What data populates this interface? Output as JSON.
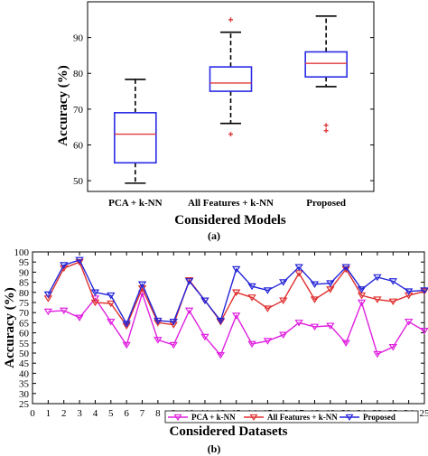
{
  "chart_data": [
    {
      "type": "box",
      "caption": "(a)",
      "title": "",
      "xlabel": "Considered Models",
      "ylabel": "Accuracy (%)",
      "ylim": [
        47,
        100
      ],
      "yticks": [
        50,
        60,
        70,
        80,
        90
      ],
      "grid": false,
      "categories": [
        "PCA + k-NN",
        "All Features + k-NN",
        "Proposed"
      ],
      "boxes": [
        {
          "name": "PCA + k-NN",
          "whisker_low": 49.3,
          "q1": 55,
          "median": 63,
          "q3": 69,
          "whisker_high": 78.3,
          "outliers": []
        },
        {
          "name": "All Features + k-NN",
          "whisker_low": 66,
          "q1": 75,
          "median": 77.3,
          "q3": 81.8,
          "whisker_high": 91.5,
          "outliers": [
            63,
            95
          ]
        },
        {
          "name": "Proposed",
          "whisker_low": 76.3,
          "q1": 79,
          "median": 82.8,
          "q3": 86,
          "whisker_high": 96,
          "outliers": [
            64,
            65.5
          ]
        }
      ],
      "colors": {
        "box": "#2a2ae6",
        "median": "#e03a3a",
        "outlier": "#e03a3a",
        "whisker": "#000000"
      }
    },
    {
      "type": "line",
      "caption": "(b)",
      "title": "",
      "xlabel": "Considered Datasets",
      "ylabel": "Accuracy (%)",
      "xlim": [
        0,
        25
      ],
      "ylim": [
        25,
        100
      ],
      "xticks": [
        0,
        1,
        2,
        3,
        4,
        5,
        6,
        7,
        8,
        9,
        10,
        11,
        12,
        13,
        14,
        15,
        16,
        17,
        18,
        19,
        20,
        21,
        22,
        23,
        24,
        25
      ],
      "yticks": [
        25,
        30,
        35,
        40,
        45,
        50,
        55,
        60,
        65,
        70,
        75,
        80,
        85,
        90,
        95,
        100
      ],
      "grid": false,
      "legend": "bottom-right",
      "x": [
        1,
        2,
        3,
        4,
        5,
        6,
        7,
        8,
        9,
        10,
        11,
        12,
        13,
        14,
        15,
        16,
        17,
        18,
        19,
        20,
        21,
        22,
        23,
        24,
        25
      ],
      "series": [
        {
          "name": "PCA + k-NN",
          "color": "#e020e0",
          "marker": "triangle-down",
          "values": [
            70.5,
            71,
            67.5,
            77,
            65.5,
            54,
            79.5,
            56.5,
            54,
            71,
            58,
            49,
            68.5,
            54.5,
            56,
            59,
            65,
            63,
            63.5,
            55,
            75,
            49.5,
            53,
            65.5,
            61
          ]
        },
        {
          "name": "All Features + k-NN",
          "color": "#e03030",
          "marker": "triangle-down",
          "values": [
            77,
            92,
            95,
            75,
            74.5,
            63.5,
            82,
            65,
            64,
            86,
            76,
            65.5,
            80,
            77.5,
            72,
            76,
            89.5,
            76.5,
            81.5,
            91.5,
            78.5,
            76.5,
            75.5,
            78.5,
            80.5
          ]
        },
        {
          "name": "Proposed",
          "color": "#2424d8",
          "marker": "triangle-down",
          "values": [
            79,
            93.5,
            96,
            80,
            78.5,
            64.5,
            84,
            66,
            65.5,
            85.5,
            76,
            66,
            91.5,
            83,
            81,
            85,
            92.5,
            84,
            84.5,
            92.5,
            81.5,
            87.5,
            85.5,
            80.5,
            81
          ]
        }
      ]
    }
  ]
}
